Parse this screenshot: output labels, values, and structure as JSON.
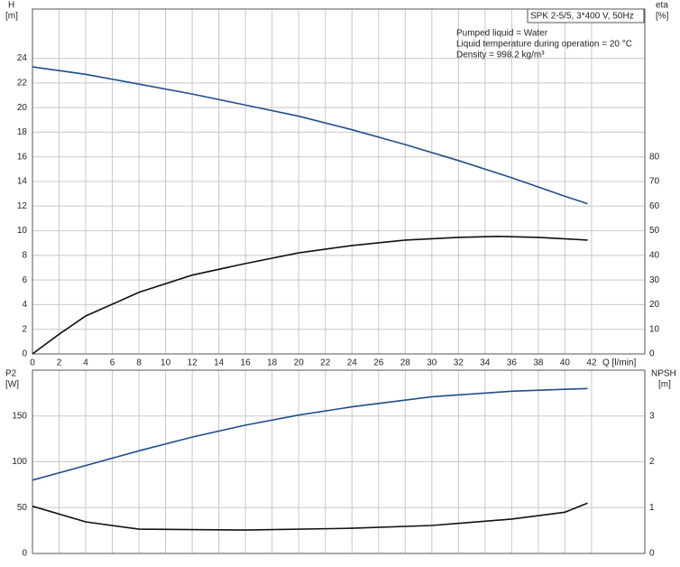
{
  "chart_data": [
    {
      "type": "line",
      "title": "SPK 2-5/5, 3*400 V, 50Hz",
      "annotations": [
        "Pumped liquid = Water",
        "Liquid temperature during operation = 20 °C",
        "Density = 998.2 kg/m³"
      ],
      "ylabel": "H",
      "yunit": "[m]",
      "y2label": "eta",
      "y2unit": "[%]",
      "xlabel": "Q [l/min]",
      "xlim": [
        0,
        46
      ],
      "xticks": [
        0,
        2,
        4,
        6,
        8,
        10,
        12,
        14,
        16,
        18,
        20,
        22,
        24,
        26,
        28,
        30,
        32,
        34,
        36,
        38,
        40,
        42
      ],
      "ylim": [
        0,
        28
      ],
      "yticks": [
        0,
        2,
        4,
        6,
        8,
        10,
        12,
        14,
        16,
        18,
        20,
        22,
        24
      ],
      "y2lim": [
        0,
        140
      ],
      "y2ticks": [
        0,
        10,
        20,
        30,
        40,
        50,
        60,
        70,
        80
      ],
      "grid": true,
      "series": [
        {
          "name": "H",
          "color": "#1f4e8c",
          "x": [
            0,
            4,
            8,
            12,
            16,
            20,
            24,
            28,
            32,
            36,
            40,
            41.7
          ],
          "values": [
            23.3,
            22.7,
            21.9,
            21.1,
            20.2,
            19.3,
            18.2,
            17.0,
            15.7,
            14.3,
            12.8,
            12.2
          ]
        },
        {
          "name": "eta",
          "color": "#111111",
          "axis": "y2",
          "x": [
            0,
            2,
            4,
            8,
            12,
            16,
            20,
            24,
            28,
            32,
            35,
            38,
            41.7
          ],
          "values": [
            0,
            8,
            15.4,
            25,
            32,
            36.7,
            41,
            44,
            46.2,
            47.3,
            47.7,
            47.3,
            46.2
          ]
        }
      ]
    },
    {
      "type": "line",
      "ylabel": "P2",
      "yunit": "[W]",
      "y2label": "NPSH",
      "y2unit": "[m]",
      "xlim": [
        0,
        46
      ],
      "xticks": [
        0,
        2,
        4,
        6,
        8,
        10,
        12,
        14,
        16,
        18,
        20,
        22,
        24,
        26,
        28,
        30,
        32,
        34,
        36,
        38,
        40,
        42
      ],
      "ylim": [
        0,
        200
      ],
      "yticks": [
        0,
        50,
        100,
        150
      ],
      "y2lim": [
        0,
        4
      ],
      "y2ticks": [
        0,
        1,
        2,
        3
      ],
      "grid": true,
      "series": [
        {
          "name": "P2",
          "color": "#1f4e8c",
          "x": [
            0,
            4,
            8,
            12,
            16,
            20,
            24,
            30,
            36,
            41.7
          ],
          "values": [
            80,
            96,
            112,
            127,
            140,
            151,
            160,
            171,
            177,
            180
          ]
        },
        {
          "name": "NPSH",
          "color": "#111111",
          "axis": "y2",
          "x": [
            0,
            4,
            8,
            16,
            24,
            30,
            36,
            40,
            41.7
          ],
          "values": [
            1.03,
            0.69,
            0.53,
            0.51,
            0.55,
            0.61,
            0.75,
            0.9,
            1.1
          ]
        }
      ]
    }
  ]
}
